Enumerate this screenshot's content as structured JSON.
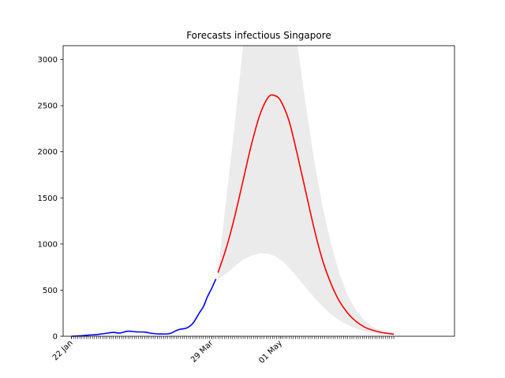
{
  "chart_data": {
    "type": "line",
    "title": "Forecasts infectious Singapore",
    "xlabel": "",
    "ylabel": "",
    "x_axis": {
      "type": "date",
      "start": "2020-01-18",
      "end": "2020-07-23",
      "labeled_ticks": [
        "22 Jan",
        "29 Mar",
        "01 May"
      ],
      "minor_ticks": "daily"
    },
    "ylim": [
      0,
      3150
    ],
    "yticks": [
      0,
      500,
      1000,
      1500,
      2000,
      2500,
      3000
    ],
    "grid": false,
    "series": [
      {
        "role": "observed",
        "color": "#0000ff",
        "points": [
          [
            "2020-01-22",
            0
          ],
          [
            "2020-01-26",
            5
          ],
          [
            "2020-01-30",
            12
          ],
          [
            "2020-02-03",
            18
          ],
          [
            "2020-02-07",
            30
          ],
          [
            "2020-02-11",
            42
          ],
          [
            "2020-02-14",
            35
          ],
          [
            "2020-02-18",
            55
          ],
          [
            "2020-02-22",
            48
          ],
          [
            "2020-02-26",
            45
          ],
          [
            "2020-03-01",
            30
          ],
          [
            "2020-03-05",
            25
          ],
          [
            "2020-03-09",
            30
          ],
          [
            "2020-03-13",
            70
          ],
          [
            "2020-03-17",
            90
          ],
          [
            "2020-03-20",
            140
          ],
          [
            "2020-03-23",
            250
          ],
          [
            "2020-03-25",
            320
          ],
          [
            "2020-03-27",
            430
          ],
          [
            "2020-03-29",
            520
          ],
          [
            "2020-03-31",
            620
          ]
        ]
      },
      {
        "role": "forecast",
        "color": "#ff0000",
        "points": [
          [
            "2020-04-01",
            690
          ],
          [
            "2020-04-05",
            960
          ],
          [
            "2020-04-09",
            1300
          ],
          [
            "2020-04-13",
            1690
          ],
          [
            "2020-04-17",
            2080
          ],
          [
            "2020-04-21",
            2400
          ],
          [
            "2020-04-25",
            2590
          ],
          [
            "2020-04-28",
            2610
          ],
          [
            "2020-05-01",
            2550
          ],
          [
            "2020-05-05",
            2330
          ],
          [
            "2020-05-09",
            1960
          ],
          [
            "2020-05-13",
            1560
          ],
          [
            "2020-05-17",
            1160
          ],
          [
            "2020-05-21",
            820
          ],
          [
            "2020-05-25",
            570
          ],
          [
            "2020-05-29",
            380
          ],
          [
            "2020-06-02",
            250
          ],
          [
            "2020-06-06",
            160
          ],
          [
            "2020-06-10",
            100
          ],
          [
            "2020-06-14",
            65
          ],
          [
            "2020-06-18",
            42
          ],
          [
            "2020-06-22",
            28
          ],
          [
            "2020-06-24",
            22
          ]
        ]
      }
    ],
    "band": {
      "color": "#ebebeb",
      "upper": [
        [
          "2020-04-01",
          700
        ],
        [
          "2020-04-05",
          1500
        ],
        [
          "2020-04-09",
          2300
        ],
        [
          "2020-04-13",
          3150
        ],
        [
          "2020-05-09",
          3150
        ],
        [
          "2020-05-13",
          2500
        ],
        [
          "2020-05-17",
          1900
        ],
        [
          "2020-05-21",
          1400
        ],
        [
          "2020-05-25",
          1000
        ],
        [
          "2020-05-29",
          680
        ],
        [
          "2020-06-02",
          440
        ],
        [
          "2020-06-06",
          280
        ],
        [
          "2020-06-10",
          170
        ],
        [
          "2020-06-14",
          100
        ],
        [
          "2020-06-18",
          60
        ],
        [
          "2020-06-22",
          35
        ],
        [
          "2020-06-24",
          28
        ]
      ],
      "lower": [
        [
          "2020-04-01",
          620
        ],
        [
          "2020-04-05",
          680
        ],
        [
          "2020-04-09",
          760
        ],
        [
          "2020-04-13",
          830
        ],
        [
          "2020-04-17",
          875
        ],
        [
          "2020-04-21",
          900
        ],
        [
          "2020-04-25",
          895
        ],
        [
          "2020-04-29",
          860
        ],
        [
          "2020-05-03",
          790
        ],
        [
          "2020-05-07",
          690
        ],
        [
          "2020-05-11",
          580
        ],
        [
          "2020-05-15",
          470
        ],
        [
          "2020-05-19",
          370
        ],
        [
          "2020-05-23",
          280
        ],
        [
          "2020-05-27",
          205
        ],
        [
          "2020-05-31",
          145
        ],
        [
          "2020-06-04",
          100
        ],
        [
          "2020-06-08",
          68
        ],
        [
          "2020-06-12",
          45
        ],
        [
          "2020-06-16",
          30
        ],
        [
          "2020-06-20",
          20
        ],
        [
          "2020-06-24",
          14
        ]
      ]
    }
  }
}
